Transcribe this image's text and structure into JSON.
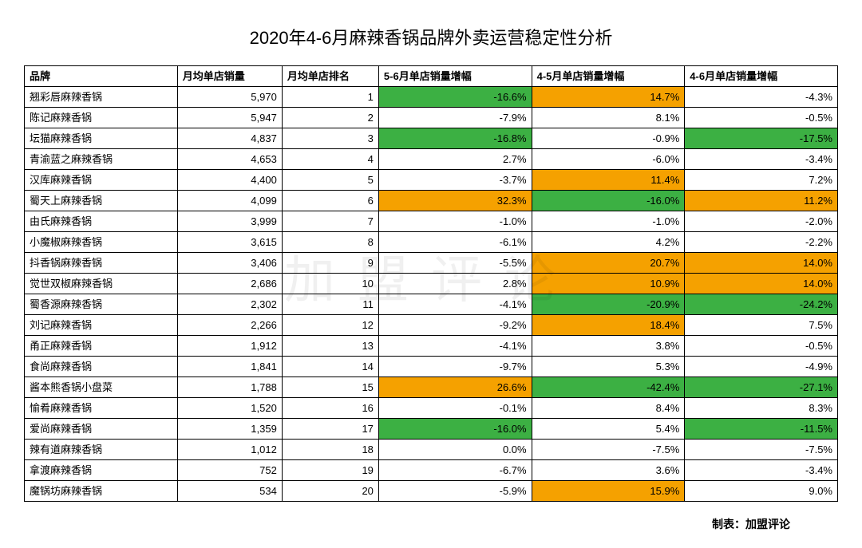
{
  "title": "2020年4-6月麻辣香锅品牌外卖运营稳定性分析",
  "watermark_text": "加盟评论",
  "footer_label": "制表：加盟评论",
  "columns": [
    "品牌",
    "月均单店销量",
    "月均单店排名",
    "5-6月单店销量增幅",
    "4-5月单店销量增幅",
    "4-6月单店销量增幅"
  ],
  "highlight_colors": {
    "green": "#3cb043",
    "orange": "#f5a100",
    "none": "#ffffff"
  },
  "rows": [
    {
      "brand": "翘彩唇麻辣香锅",
      "sales": "5,970",
      "rank": 1,
      "p56": {
        "v": "-16.6%",
        "c": "green"
      },
      "p45": {
        "v": "14.7%",
        "c": "orange"
      },
      "p46": {
        "v": "-4.3%",
        "c": "none"
      }
    },
    {
      "brand": "陈记麻辣香锅",
      "sales": "5,947",
      "rank": 2,
      "p56": {
        "v": "-7.9%",
        "c": "none"
      },
      "p45": {
        "v": "8.1%",
        "c": "none"
      },
      "p46": {
        "v": "-0.5%",
        "c": "none"
      }
    },
    {
      "brand": "坛猫麻辣香锅",
      "sales": "4,837",
      "rank": 3,
      "p56": {
        "v": "-16.8%",
        "c": "green"
      },
      "p45": {
        "v": "-0.9%",
        "c": "none"
      },
      "p46": {
        "v": "-17.5%",
        "c": "green"
      }
    },
    {
      "brand": "青渝蓝之麻辣香锅",
      "sales": "4,653",
      "rank": 4,
      "p56": {
        "v": "2.7%",
        "c": "none"
      },
      "p45": {
        "v": "-6.0%",
        "c": "none"
      },
      "p46": {
        "v": "-3.4%",
        "c": "none"
      }
    },
    {
      "brand": "汉库麻辣香锅",
      "sales": "4,400",
      "rank": 5,
      "p56": {
        "v": "-3.7%",
        "c": "none"
      },
      "p45": {
        "v": "11.4%",
        "c": "orange"
      },
      "p46": {
        "v": "7.2%",
        "c": "none"
      }
    },
    {
      "brand": "蜀天上麻辣香锅",
      "sales": "4,099",
      "rank": 6,
      "p56": {
        "v": "32.3%",
        "c": "orange"
      },
      "p45": {
        "v": "-16.0%",
        "c": "green"
      },
      "p46": {
        "v": "11.2%",
        "c": "orange"
      }
    },
    {
      "brand": "由氏麻辣香锅",
      "sales": "3,999",
      "rank": 7,
      "p56": {
        "v": "-1.0%",
        "c": "none"
      },
      "p45": {
        "v": "-1.0%",
        "c": "none"
      },
      "p46": {
        "v": "-2.0%",
        "c": "none"
      }
    },
    {
      "brand": "小魔椒麻辣香锅",
      "sales": "3,615",
      "rank": 8,
      "p56": {
        "v": "-6.1%",
        "c": "none"
      },
      "p45": {
        "v": "4.2%",
        "c": "none"
      },
      "p46": {
        "v": "-2.2%",
        "c": "none"
      }
    },
    {
      "brand": "抖香锅麻辣香锅",
      "sales": "3,406",
      "rank": 9,
      "p56": {
        "v": "-5.5%",
        "c": "none"
      },
      "p45": {
        "v": "20.7%",
        "c": "orange"
      },
      "p46": {
        "v": "14.0%",
        "c": "orange"
      }
    },
    {
      "brand": "觉世双椒麻辣香锅",
      "sales": "2,686",
      "rank": 10,
      "p56": {
        "v": "2.8%",
        "c": "none"
      },
      "p45": {
        "v": "10.9%",
        "c": "orange"
      },
      "p46": {
        "v": "14.0%",
        "c": "orange"
      }
    },
    {
      "brand": "蜀香源麻辣香锅",
      "sales": "2,302",
      "rank": 11,
      "p56": {
        "v": "-4.1%",
        "c": "none"
      },
      "p45": {
        "v": "-20.9%",
        "c": "green"
      },
      "p46": {
        "v": "-24.2%",
        "c": "green"
      }
    },
    {
      "brand": "刘记麻辣香锅",
      "sales": "2,266",
      "rank": 12,
      "p56": {
        "v": "-9.2%",
        "c": "none"
      },
      "p45": {
        "v": "18.4%",
        "c": "orange"
      },
      "p46": {
        "v": "7.5%",
        "c": "none"
      }
    },
    {
      "brand": "甬正麻辣香锅",
      "sales": "1,912",
      "rank": 13,
      "p56": {
        "v": "-4.1%",
        "c": "none"
      },
      "p45": {
        "v": "3.8%",
        "c": "none"
      },
      "p46": {
        "v": "-0.5%",
        "c": "none"
      }
    },
    {
      "brand": "食尚麻辣香锅",
      "sales": "1,841",
      "rank": 14,
      "p56": {
        "v": "-9.7%",
        "c": "none"
      },
      "p45": {
        "v": "5.3%",
        "c": "none"
      },
      "p46": {
        "v": "-4.9%",
        "c": "none"
      }
    },
    {
      "brand": "酱本熊香锅小盘菜",
      "sales": "1,788",
      "rank": 15,
      "p56": {
        "v": "26.6%",
        "c": "orange"
      },
      "p45": {
        "v": "-42.4%",
        "c": "green"
      },
      "p46": {
        "v": "-27.1%",
        "c": "green"
      }
    },
    {
      "brand": "愉肴麻辣香锅",
      "sales": "1,520",
      "rank": 16,
      "p56": {
        "v": "-0.1%",
        "c": "none"
      },
      "p45": {
        "v": "8.4%",
        "c": "none"
      },
      "p46": {
        "v": "8.3%",
        "c": "none"
      }
    },
    {
      "brand": "爱尚麻辣香锅",
      "sales": "1,359",
      "rank": 17,
      "p56": {
        "v": "-16.0%",
        "c": "green"
      },
      "p45": {
        "v": "5.4%",
        "c": "none"
      },
      "p46": {
        "v": "-11.5%",
        "c": "green"
      }
    },
    {
      "brand": "辣有道麻辣香锅",
      "sales": "1,012",
      "rank": 18,
      "p56": {
        "v": "0.0%",
        "c": "none"
      },
      "p45": {
        "v": "-7.5%",
        "c": "none"
      },
      "p46": {
        "v": "-7.5%",
        "c": "none"
      }
    },
    {
      "brand": "拿渡麻辣香锅",
      "sales": "752",
      "rank": 19,
      "p56": {
        "v": "-6.7%",
        "c": "none"
      },
      "p45": {
        "v": "3.6%",
        "c": "none"
      },
      "p46": {
        "v": "-3.4%",
        "c": "none"
      }
    },
    {
      "brand": "魔锅坊麻辣香锅",
      "sales": "534",
      "rank": 20,
      "p56": {
        "v": "-5.9%",
        "c": "none"
      },
      "p45": {
        "v": "15.9%",
        "c": "orange"
      },
      "p46": {
        "v": "9.0%",
        "c": "none"
      }
    }
  ]
}
